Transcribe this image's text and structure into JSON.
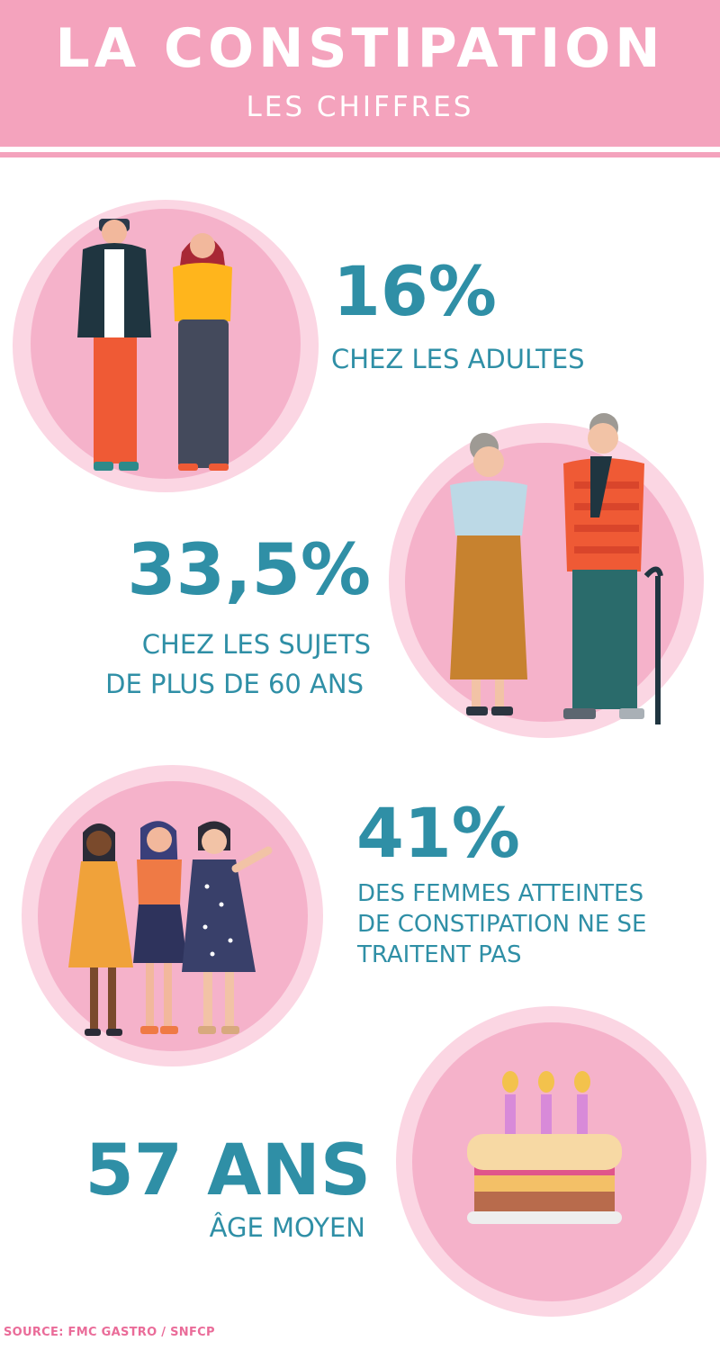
{
  "header": {
    "title": "LA CONSTIPATION",
    "subtitle": "LES CHIFFRES"
  },
  "stats": [
    {
      "value": "16%",
      "lines": [
        "CHEZ LES ADULTES"
      ],
      "illustration": "adults-couple-illustration"
    },
    {
      "value": "33,5%",
      "lines": [
        "CHEZ LES SUJETS",
        "DE PLUS DE 60 ANS"
      ],
      "illustration": "seniors-couple-illustration"
    },
    {
      "value": "41%",
      "lines": [
        "DES FEMMES ATTEINTES",
        "DE CONSTIPATION NE SE",
        "TRAITENT PAS"
      ],
      "illustration": "three-women-illustration"
    },
    {
      "value": "57 ANS",
      "lines": [
        "ÂGE MOYEN"
      ],
      "illustration": "birthday-cake-illustration"
    }
  ],
  "source": "SOURCE: FMC GASTRO / SNFCP",
  "colors": {
    "header": "#f4a3bd",
    "accent": "#2f8fa6",
    "circle_outer": "#fbd6e3",
    "circle_inner": "#f5b2ca",
    "source": "#ea6c99"
  }
}
